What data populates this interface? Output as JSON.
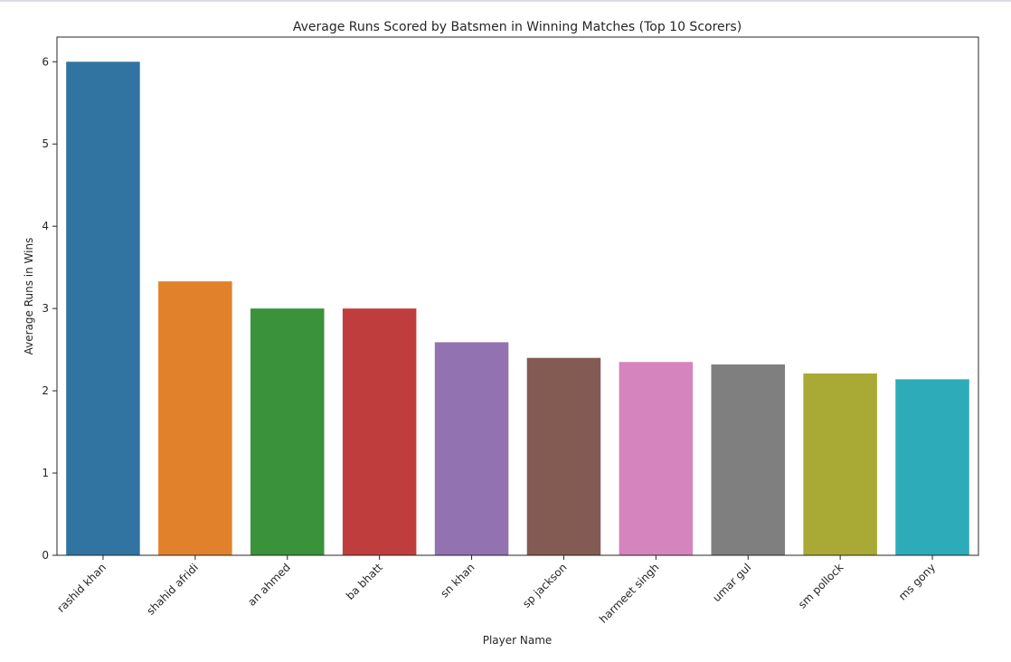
{
  "chart_data": {
    "type": "bar",
    "title": "Average Runs Scored by Batsmen in Winning Matches (Top 10 Scorers)",
    "xlabel": "Player Name",
    "ylabel": "Average Runs in Wins",
    "categories": [
      "rashid khan",
      "shahid afridi",
      "an ahmed",
      "ba bhatt",
      "sn khan",
      "sp jackson",
      "harmeet singh",
      "umar gul",
      "sm pollock",
      "ms gony"
    ],
    "values": [
      6.0,
      3.33,
      3.0,
      3.0,
      2.59,
      2.4,
      2.35,
      2.32,
      2.21,
      2.14
    ],
    "colors": [
      "#3274a1",
      "#e1812c",
      "#3a923a",
      "#c03d3e",
      "#9372b2",
      "#845b53",
      "#d684bd",
      "#7f7f7f",
      "#a9aa35",
      "#2eabb8"
    ],
    "ylim": [
      0,
      6.3
    ],
    "yticks": [
      0,
      1,
      2,
      3,
      4,
      5,
      6
    ],
    "grid": false,
    "legend": "none"
  }
}
